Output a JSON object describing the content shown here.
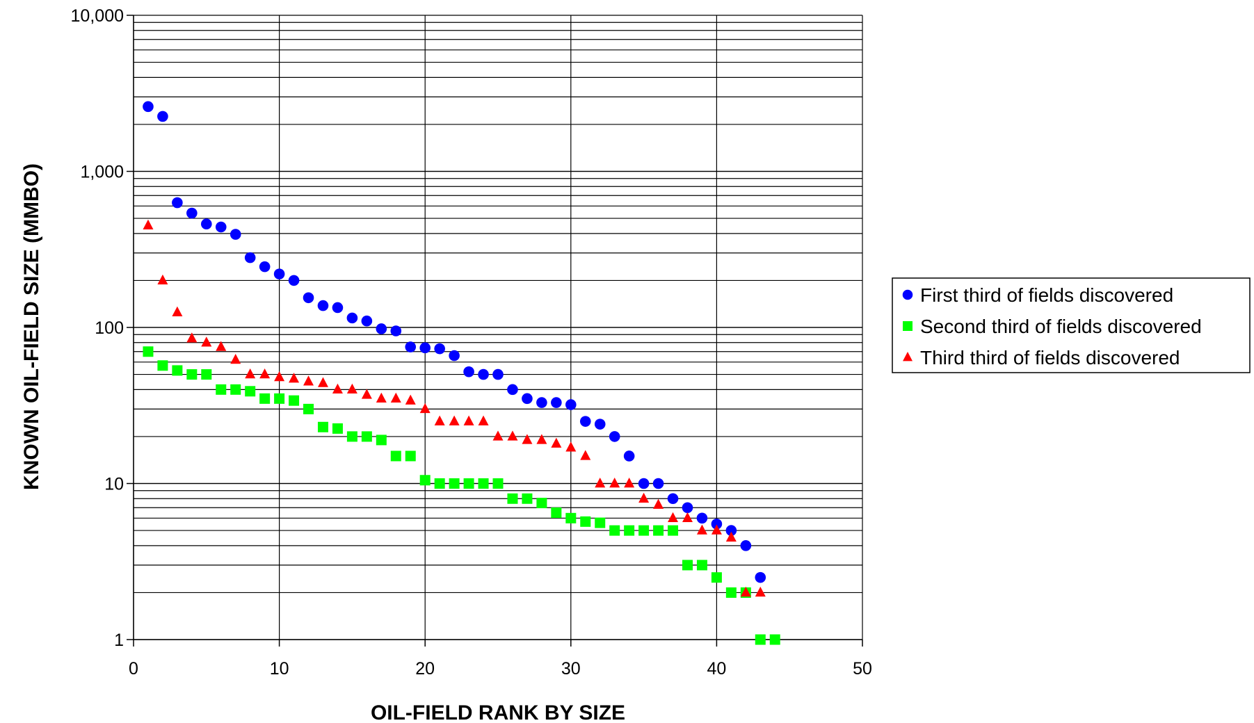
{
  "chart_data": {
    "type": "scatter",
    "title": "",
    "xlabel": "OIL-FIELD RANK BY SIZE",
    "ylabel": "KNOWN OIL-FIELD SIZE (MMBO)",
    "xlim": [
      0,
      50
    ],
    "ylim": [
      1,
      10000
    ],
    "y_scale": "log",
    "grid": true,
    "legend_position": "right",
    "x_ticks": [
      "0",
      "10",
      "20",
      "30",
      "40",
      "50"
    ],
    "y_ticks": [
      "1",
      "10",
      "100",
      "1,000",
      "10,000"
    ],
    "series": [
      {
        "name": "First third of fields discovered",
        "marker": "circle",
        "color": "#0000ff",
        "points": [
          [
            1,
            2600
          ],
          [
            2,
            2250
          ],
          [
            3,
            630
          ],
          [
            4,
            540
          ],
          [
            5,
            460
          ],
          [
            6,
            440
          ],
          [
            7,
            395
          ],
          [
            8,
            280
          ],
          [
            9,
            245
          ],
          [
            10,
            220
          ],
          [
            11,
            200
          ],
          [
            12,
            155
          ],
          [
            13,
            138
          ],
          [
            14,
            134
          ],
          [
            15,
            115
          ],
          [
            16,
            110
          ],
          [
            17,
            98
          ],
          [
            18,
            95
          ],
          [
            19,
            75
          ],
          [
            20,
            74
          ],
          [
            21,
            73
          ],
          [
            22,
            66
          ],
          [
            23,
            52
          ],
          [
            24,
            50
          ],
          [
            25,
            50
          ],
          [
            26,
            40
          ],
          [
            27,
            35
          ],
          [
            28,
            33
          ],
          [
            29,
            33
          ],
          [
            30,
            32
          ],
          [
            31,
            25
          ],
          [
            32,
            24
          ],
          [
            33,
            20
          ],
          [
            34,
            15
          ],
          [
            35,
            10
          ],
          [
            36,
            10
          ],
          [
            37,
            8
          ],
          [
            38,
            7
          ],
          [
            39,
            6
          ],
          [
            40,
            5.5
          ],
          [
            41,
            5
          ],
          [
            42,
            4
          ],
          [
            43,
            2.5
          ]
        ]
      },
      {
        "name": "Second third of fields discovered",
        "marker": "square",
        "color": "#00ff00",
        "points": [
          [
            1,
            70
          ],
          [
            2,
            57
          ],
          [
            3,
            53
          ],
          [
            4,
            50
          ],
          [
            5,
            50
          ],
          [
            6,
            40
          ],
          [
            7,
            40
          ],
          [
            8,
            39
          ],
          [
            9,
            35
          ],
          [
            10,
            35
          ],
          [
            11,
            34
          ],
          [
            12,
            30
          ],
          [
            13,
            23
          ],
          [
            14,
            22.5
          ],
          [
            15,
            20
          ],
          [
            16,
            20
          ],
          [
            17,
            19
          ],
          [
            18,
            15
          ],
          [
            19,
            15
          ],
          [
            20,
            10.5
          ],
          [
            21,
            10
          ],
          [
            22,
            10
          ],
          [
            23,
            10
          ],
          [
            24,
            10
          ],
          [
            25,
            10
          ],
          [
            26,
            8
          ],
          [
            27,
            8
          ],
          [
            28,
            7.5
          ],
          [
            29,
            6.5
          ],
          [
            30,
            6
          ],
          [
            31,
            5.7
          ],
          [
            32,
            5.6
          ],
          [
            33,
            5
          ],
          [
            34,
            5
          ],
          [
            35,
            5
          ],
          [
            36,
            5
          ],
          [
            37,
            5
          ],
          [
            38,
            3
          ],
          [
            39,
            3
          ],
          [
            40,
            2.5
          ],
          [
            41,
            2
          ],
          [
            42,
            2
          ],
          [
            43,
            1
          ],
          [
            44,
            1
          ]
        ]
      },
      {
        "name": "Third third of fields discovered",
        "marker": "triangle",
        "color": "#ff0000",
        "points": [
          [
            1,
            450
          ],
          [
            2,
            200
          ],
          [
            3,
            125
          ],
          [
            4,
            85
          ],
          [
            5,
            80
          ],
          [
            6,
            75
          ],
          [
            7,
            62
          ],
          [
            8,
            50
          ],
          [
            9,
            50
          ],
          [
            10,
            48
          ],
          [
            11,
            47
          ],
          [
            12,
            45
          ],
          [
            13,
            44
          ],
          [
            14,
            40
          ],
          [
            15,
            40
          ],
          [
            16,
            37
          ],
          [
            17,
            35
          ],
          [
            18,
            35
          ],
          [
            19,
            34
          ],
          [
            20,
            30
          ],
          [
            21,
            25
          ],
          [
            22,
            25
          ],
          [
            23,
            25
          ],
          [
            24,
            25
          ],
          [
            25,
            20
          ],
          [
            26,
            20
          ],
          [
            27,
            19
          ],
          [
            28,
            19
          ],
          [
            29,
            18
          ],
          [
            30,
            17
          ],
          [
            31,
            15
          ],
          [
            32,
            10
          ],
          [
            33,
            10
          ],
          [
            34,
            10
          ],
          [
            35,
            8
          ],
          [
            36,
            7.3
          ],
          [
            37,
            6
          ],
          [
            38,
            6
          ],
          [
            39,
            5
          ],
          [
            40,
            5
          ],
          [
            41,
            4.5
          ],
          [
            42,
            2
          ],
          [
            43,
            2
          ]
        ]
      }
    ]
  }
}
